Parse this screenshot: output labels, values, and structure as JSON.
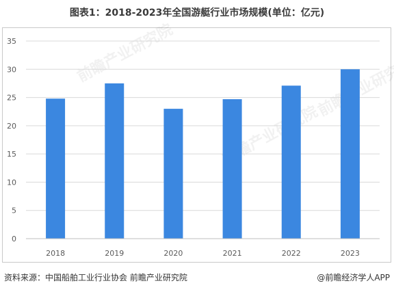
{
  "title": "图表1：2018-2023年全国游艇行业市场规模(单位：亿元)",
  "chart_data": {
    "type": "bar",
    "categories": [
      "2018",
      "2019",
      "2020",
      "2021",
      "2022",
      "2023"
    ],
    "values": [
      24.8,
      27.5,
      23.0,
      24.7,
      27.1,
      30.0
    ],
    "ylim": [
      0,
      35
    ],
    "yticks": [
      0,
      5,
      10,
      15,
      20,
      25,
      30,
      35
    ],
    "grid": true,
    "bar_color": "#3b87e0",
    "legend": "none"
  },
  "watermark": "前瞻产业研究院",
  "footer": {
    "source": "资料来源：中国船舶工业行业协会 前瞻产业研究院",
    "credit": "@前瞻经济学人APP"
  }
}
